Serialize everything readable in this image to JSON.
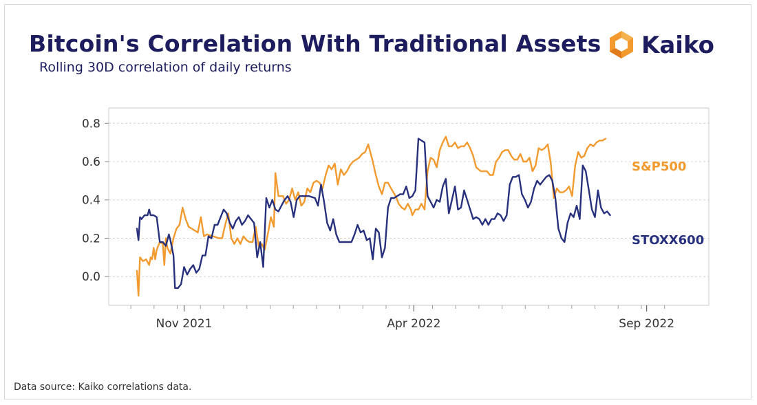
{
  "title": "Bitcoin's Correlation With Traditional Assets",
  "subtitle": "Rolling 30D correlation of daily returns",
  "logo": {
    "name": "Kaiko",
    "icon": "kaiko-hexagon-icon"
  },
  "source": "Data source: Kaiko correlations data.",
  "colors": {
    "sp500": "#f29a2e",
    "stoxx600": "#27307d",
    "title": "#1c1c5e"
  },
  "chart_data": {
    "type": "line",
    "title": "Bitcoin's Correlation With Traditional Assets",
    "xlabel": "",
    "ylabel": "",
    "ylim": [
      -0.15,
      0.88
    ],
    "yticks": [
      0.0,
      0.2,
      0.4,
      0.6,
      0.8
    ],
    "ytick_labels": [
      "0.0",
      "0.2",
      "0.4",
      "0.6",
      "0.8"
    ],
    "xlim": [
      0,
      365
    ],
    "xticks": [
      {
        "x": 31,
        "label": "Nov 2021"
      },
      {
        "x": 182,
        "label": "Apr 2022"
      },
      {
        "x": 335,
        "label": "Sep 2022"
      }
    ],
    "x_unit": "days since 2021-10-01",
    "grid": "horizontal dashed",
    "series": [
      {
        "name": "S&P500",
        "label_position": "right",
        "points": [
          [
            0,
            0.03
          ],
          [
            1,
            -0.1
          ],
          [
            2,
            0.1
          ],
          [
            4,
            0.08
          ],
          [
            6,
            0.09
          ],
          [
            8,
            0.06
          ],
          [
            9,
            0.1
          ],
          [
            10,
            0.09
          ],
          [
            11,
            0.15
          ],
          [
            12,
            0.09
          ],
          [
            13,
            0.14
          ],
          [
            15,
            0.18
          ],
          [
            17,
            0.17
          ],
          [
            18,
            0.06
          ],
          [
            19,
            0.2
          ],
          [
            20,
            0.15
          ],
          [
            22,
            0.12
          ],
          [
            24,
            0.2
          ],
          [
            26,
            0.25
          ],
          [
            28,
            0.27
          ],
          [
            30,
            0.36
          ],
          [
            32,
            0.3
          ],
          [
            34,
            0.26
          ],
          [
            36,
            0.25
          ],
          [
            38,
            0.24
          ],
          [
            40,
            0.23
          ],
          [
            42,
            0.31
          ],
          [
            44,
            0.21
          ],
          [
            46,
            0.22
          ],
          [
            50,
            0.21
          ],
          [
            54,
            0.2
          ],
          [
            56,
            0.2
          ],
          [
            58,
            0.27
          ],
          [
            60,
            0.33
          ],
          [
            62,
            0.2
          ],
          [
            64,
            0.17
          ],
          [
            66,
            0.2
          ],
          [
            68,
            0.17
          ],
          [
            70,
            0.21
          ],
          [
            72,
            0.19
          ],
          [
            74,
            0.18
          ],
          [
            76,
            0.18
          ],
          [
            78,
            0.26
          ],
          [
            80,
            0.16
          ],
          [
            82,
            0.17
          ],
          [
            84,
            0.14
          ],
          [
            86,
            0.22
          ],
          [
            88,
            0.31
          ],
          [
            90,
            0.26
          ],
          [
            91,
            0.54
          ],
          [
            93,
            0.42
          ],
          [
            96,
            0.42
          ],
          [
            98,
            0.38
          ],
          [
            100,
            0.4
          ],
          [
            102,
            0.46
          ],
          [
            104,
            0.4
          ],
          [
            106,
            0.44
          ],
          [
            108,
            0.37
          ],
          [
            110,
            0.39
          ],
          [
            112,
            0.46
          ],
          [
            114,
            0.44
          ],
          [
            116,
            0.49
          ],
          [
            118,
            0.5
          ],
          [
            120,
            0.49
          ],
          [
            122,
            0.46
          ],
          [
            124,
            0.53
          ],
          [
            126,
            0.58
          ],
          [
            128,
            0.56
          ],
          [
            130,
            0.59
          ],
          [
            132,
            0.48
          ],
          [
            134,
            0.56
          ],
          [
            136,
            0.53
          ],
          [
            138,
            0.55
          ],
          [
            140,
            0.58
          ],
          [
            142,
            0.6
          ],
          [
            144,
            0.61
          ],
          [
            146,
            0.62
          ],
          [
            148,
            0.64
          ],
          [
            150,
            0.65
          ],
          [
            152,
            0.69
          ],
          [
            153,
            0.66
          ],
          [
            155,
            0.6
          ],
          [
            157,
            0.53
          ],
          [
            159,
            0.47
          ],
          [
            161,
            0.43
          ],
          [
            163,
            0.49
          ],
          [
            165,
            0.49
          ],
          [
            167,
            0.46
          ],
          [
            170,
            0.42
          ],
          [
            172,
            0.38
          ],
          [
            174,
            0.36
          ],
          [
            176,
            0.35
          ],
          [
            178,
            0.38
          ],
          [
            180,
            0.35
          ],
          [
            181,
            0.32
          ],
          [
            183,
            0.35
          ],
          [
            185,
            0.35
          ],
          [
            187,
            0.38
          ],
          [
            189,
            0.35
          ],
          [
            191,
            0.55
          ],
          [
            193,
            0.62
          ],
          [
            195,
            0.61
          ],
          [
            197,
            0.57
          ],
          [
            199,
            0.66
          ],
          [
            201,
            0.7
          ],
          [
            203,
            0.73
          ],
          [
            205,
            0.68
          ],
          [
            207,
            0.68
          ],
          [
            209,
            0.7
          ],
          [
            211,
            0.67
          ],
          [
            213,
            0.68
          ],
          [
            215,
            0.68
          ],
          [
            217,
            0.7
          ],
          [
            219,
            0.67
          ],
          [
            221,
            0.63
          ],
          [
            223,
            0.57
          ],
          [
            226,
            0.55
          ],
          [
            230,
            0.55
          ],
          [
            232,
            0.53
          ],
          [
            234,
            0.53
          ],
          [
            236,
            0.6
          ],
          [
            238,
            0.62
          ],
          [
            240,
            0.65
          ],
          [
            242,
            0.66
          ],
          [
            244,
            0.66
          ],
          [
            246,
            0.63
          ],
          [
            248,
            0.61
          ],
          [
            250,
            0.61
          ],
          [
            252,
            0.64
          ],
          [
            254,
            0.6
          ],
          [
            256,
            0.6
          ],
          [
            258,
            0.62
          ],
          [
            260,
            0.55
          ],
          [
            262,
            0.58
          ],
          [
            264,
            0.67
          ],
          [
            266,
            0.66
          ],
          [
            268,
            0.67
          ],
          [
            270,
            0.69
          ],
          [
            272,
            0.59
          ],
          [
            274,
            0.41
          ],
          [
            276,
            0.46
          ],
          [
            278,
            0.44
          ],
          [
            280,
            0.44
          ],
          [
            282,
            0.45
          ],
          [
            284,
            0.47
          ],
          [
            286,
            0.42
          ],
          [
            288,
            0.58
          ],
          [
            290,
            0.65
          ],
          [
            292,
            0.62
          ],
          [
            294,
            0.63
          ],
          [
            296,
            0.67
          ],
          [
            298,
            0.69
          ],
          [
            300,
            0.68
          ],
          [
            302,
            0.7
          ],
          [
            304,
            0.71
          ],
          [
            306,
            0.71
          ],
          [
            308,
            0.72
          ]
        ]
      },
      {
        "name": "STOXX600",
        "label_position": "right",
        "points": [
          [
            0,
            0.25
          ],
          [
            1,
            0.19
          ],
          [
            2,
            0.31
          ],
          [
            3,
            0.3
          ],
          [
            5,
            0.32
          ],
          [
            7,
            0.32
          ],
          [
            8,
            0.35
          ],
          [
            9,
            0.32
          ],
          [
            11,
            0.32
          ],
          [
            13,
            0.31
          ],
          [
            15,
            0.18
          ],
          [
            17,
            0.18
          ],
          [
            19,
            0.16
          ],
          [
            21,
            0.22
          ],
          [
            22,
            0.19
          ],
          [
            24,
            0.11
          ],
          [
            25,
            -0.06
          ],
          [
            27,
            -0.06
          ],
          [
            29,
            -0.04
          ],
          [
            31,
            0.05
          ],
          [
            33,
            0.01
          ],
          [
            35,
            0.04
          ],
          [
            37,
            0.06
          ],
          [
            39,
            0.02
          ],
          [
            41,
            0.04
          ],
          [
            43,
            0.11
          ],
          [
            45,
            0.11
          ],
          [
            47,
            0.21
          ],
          [
            49,
            0.2
          ],
          [
            51,
            0.27
          ],
          [
            53,
            0.27
          ],
          [
            55,
            0.31
          ],
          [
            57,
            0.35
          ],
          [
            59,
            0.33
          ],
          [
            61,
            0.28
          ],
          [
            63,
            0.25
          ],
          [
            65,
            0.29
          ],
          [
            67,
            0.31
          ],
          [
            69,
            0.27
          ],
          [
            71,
            0.29
          ],
          [
            73,
            0.32
          ],
          [
            75,
            0.3
          ],
          [
            77,
            0.28
          ],
          [
            79,
            0.1
          ],
          [
            81,
            0.18
          ],
          [
            83,
            0.05
          ],
          [
            85,
            0.41
          ],
          [
            87,
            0.36
          ],
          [
            89,
            0.4
          ],
          [
            91,
            0.35
          ],
          [
            93,
            0.34
          ],
          [
            95,
            0.37
          ],
          [
            97,
            0.4
          ],
          [
            99,
            0.42
          ],
          [
            101,
            0.39
          ],
          [
            103,
            0.31
          ],
          [
            105,
            0.4
          ],
          [
            107,
            0.42
          ],
          [
            109,
            0.42
          ],
          [
            113,
            0.42
          ],
          [
            117,
            0.41
          ],
          [
            119,
            0.37
          ],
          [
            121,
            0.48
          ],
          [
            123,
            0.39
          ],
          [
            125,
            0.28
          ],
          [
            127,
            0.24
          ],
          [
            129,
            0.3
          ],
          [
            131,
            0.22
          ],
          [
            133,
            0.18
          ],
          [
            137,
            0.18
          ],
          [
            141,
            0.18
          ],
          [
            143,
            0.22
          ],
          [
            145,
            0.27
          ],
          [
            147,
            0.23
          ],
          [
            149,
            0.24
          ],
          [
            151,
            0.19
          ],
          [
            153,
            0.2
          ],
          [
            155,
            0.09
          ],
          [
            157,
            0.25
          ],
          [
            159,
            0.23
          ],
          [
            161,
            0.1
          ],
          [
            163,
            0.15
          ],
          [
            165,
            0.36
          ],
          [
            167,
            0.41
          ],
          [
            169,
            0.41
          ],
          [
            171,
            0.42
          ],
          [
            173,
            0.43
          ],
          [
            175,
            0.43
          ],
          [
            177,
            0.47
          ],
          [
            179,
            0.41
          ],
          [
            181,
            0.42
          ],
          [
            183,
            0.45
          ],
          [
            185,
            0.72
          ],
          [
            187,
            0.71
          ],
          [
            189,
            0.7
          ],
          [
            191,
            0.42
          ],
          [
            193,
            0.39
          ],
          [
            195,
            0.36
          ],
          [
            197,
            0.4
          ],
          [
            199,
            0.39
          ],
          [
            201,
            0.47
          ],
          [
            203,
            0.51
          ],
          [
            205,
            0.33
          ],
          [
            207,
            0.4
          ],
          [
            209,
            0.47
          ],
          [
            211,
            0.35
          ],
          [
            213,
            0.36
          ],
          [
            215,
            0.45
          ],
          [
            217,
            0.4
          ],
          [
            219,
            0.35
          ],
          [
            221,
            0.3
          ],
          [
            223,
            0.31
          ],
          [
            225,
            0.3
          ],
          [
            227,
            0.27
          ],
          [
            229,
            0.3
          ],
          [
            231,
            0.27
          ],
          [
            233,
            0.3
          ],
          [
            235,
            0.3
          ],
          [
            237,
            0.33
          ],
          [
            239,
            0.32
          ],
          [
            241,
            0.29
          ],
          [
            243,
            0.32
          ],
          [
            245,
            0.48
          ],
          [
            247,
            0.52
          ],
          [
            249,
            0.52
          ],
          [
            251,
            0.53
          ],
          [
            253,
            0.43
          ],
          [
            255,
            0.4
          ],
          [
            257,
            0.36
          ],
          [
            259,
            0.39
          ],
          [
            261,
            0.46
          ],
          [
            263,
            0.5
          ],
          [
            265,
            0.48
          ],
          [
            267,
            0.5
          ],
          [
            269,
            0.52
          ],
          [
            271,
            0.53
          ],
          [
            273,
            0.5
          ],
          [
            275,
            0.41
          ],
          [
            277,
            0.25
          ],
          [
            279,
            0.2
          ],
          [
            281,
            0.18
          ],
          [
            283,
            0.28
          ],
          [
            285,
            0.33
          ],
          [
            287,
            0.31
          ],
          [
            289,
            0.37
          ],
          [
            291,
            0.3
          ],
          [
            293,
            0.58
          ],
          [
            295,
            0.55
          ],
          [
            297,
            0.45
          ],
          [
            299,
            0.35
          ],
          [
            301,
            0.31
          ],
          [
            303,
            0.45
          ],
          [
            305,
            0.36
          ],
          [
            307,
            0.33
          ],
          [
            309,
            0.34
          ],
          [
            311,
            0.32
          ]
        ]
      }
    ]
  }
}
